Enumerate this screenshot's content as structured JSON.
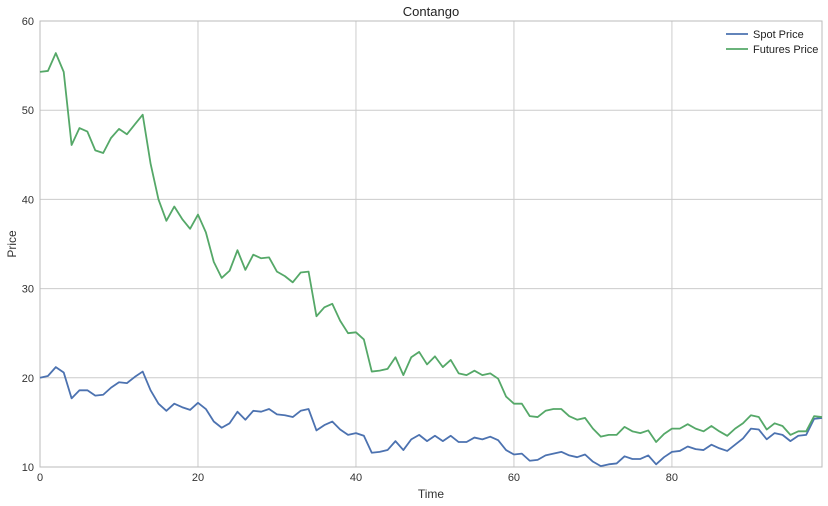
{
  "chart_data": {
    "type": "line",
    "title": "Contango",
    "xlabel": "Time",
    "ylabel": "Price",
    "xlim": [
      0,
      99
    ],
    "ylim": [
      10,
      60
    ],
    "xticks": [
      0,
      20,
      40,
      60,
      80
    ],
    "yticks": [
      10,
      20,
      30,
      40,
      50,
      60
    ],
    "grid": true,
    "legend_position": "top-right",
    "x": [
      0,
      1,
      2,
      3,
      4,
      5,
      6,
      7,
      8,
      9,
      10,
      11,
      12,
      13,
      14,
      15,
      16,
      17,
      18,
      19,
      20,
      21,
      22,
      23,
      24,
      25,
      26,
      27,
      28,
      29,
      30,
      31,
      32,
      33,
      34,
      35,
      36,
      37,
      38,
      39,
      40,
      41,
      42,
      43,
      44,
      45,
      46,
      47,
      48,
      49,
      50,
      51,
      52,
      53,
      54,
      55,
      56,
      57,
      58,
      59,
      60,
      61,
      62,
      63,
      64,
      65,
      66,
      67,
      68,
      69,
      70,
      71,
      72,
      73,
      74,
      75,
      76,
      77,
      78,
      79,
      80,
      81,
      82,
      83,
      84,
      85,
      86,
      87,
      88,
      89,
      90,
      91,
      92,
      93,
      94,
      95,
      96,
      97,
      98,
      99
    ],
    "series": [
      {
        "name": "Spot Price",
        "color": "#4c72b0",
        "values": [
          20.0,
          20.2,
          21.2,
          20.6,
          17.7,
          18.6,
          18.6,
          18.0,
          18.1,
          18.9,
          19.5,
          19.4,
          20.1,
          20.7,
          18.6,
          17.1,
          16.3,
          17.1,
          16.7,
          16.4,
          17.2,
          16.5,
          15.1,
          14.4,
          14.9,
          16.2,
          15.3,
          16.3,
          16.2,
          16.5,
          15.9,
          15.8,
          15.6,
          16.3,
          16.5,
          14.1,
          14.7,
          15.1,
          14.2,
          13.6,
          13.8,
          13.5,
          11.6,
          11.7,
          11.9,
          12.9,
          11.9,
          13.1,
          13.6,
          12.9,
          13.5,
          12.9,
          13.5,
          12.8,
          12.8,
          13.3,
          13.1,
          13.4,
          13.0,
          11.9,
          11.4,
          11.5,
          10.7,
          10.8,
          11.3,
          11.5,
          11.7,
          11.3,
          11.1,
          11.4,
          10.6,
          10.1,
          10.3,
          10.4,
          11.2,
          10.9,
          10.9,
          11.3,
          10.3,
          11.1,
          11.7,
          11.8,
          12.3,
          12.0,
          11.9,
          12.5,
          12.1,
          11.8,
          12.5,
          13.2,
          14.3,
          14.2,
          13.1,
          13.8,
          13.6,
          12.9,
          13.5,
          13.6,
          15.4,
          15.5
        ]
      },
      {
        "name": "Futures Price",
        "color": "#55a868",
        "values": [
          54.3,
          54.4,
          56.4,
          54.3,
          46.1,
          48.0,
          47.6,
          45.5,
          45.2,
          46.9,
          47.9,
          47.3,
          48.4,
          49.5,
          44.0,
          40.0,
          37.6,
          39.2,
          37.8,
          36.7,
          38.3,
          36.3,
          33.0,
          31.2,
          32.0,
          34.3,
          32.1,
          33.8,
          33.4,
          33.5,
          31.9,
          31.4,
          30.7,
          31.8,
          31.9,
          26.9,
          27.9,
          28.3,
          26.4,
          25.0,
          25.1,
          24.3,
          20.7,
          20.8,
          21.0,
          22.3,
          20.3,
          22.3,
          22.9,
          21.5,
          22.4,
          21.2,
          22.0,
          20.5,
          20.3,
          20.8,
          20.3,
          20.5,
          19.9,
          17.9,
          17.1,
          17.1,
          15.7,
          15.6,
          16.3,
          16.5,
          16.5,
          15.7,
          15.3,
          15.5,
          14.3,
          13.4,
          13.6,
          13.6,
          14.5,
          14.0,
          13.8,
          14.1,
          12.8,
          13.7,
          14.3,
          14.3,
          14.8,
          14.3,
          14.0,
          14.6,
          14.0,
          13.5,
          14.3,
          14.9,
          15.8,
          15.6,
          14.2,
          14.9,
          14.6,
          13.6,
          14.0,
          14.0,
          15.7,
          15.6
        ]
      }
    ]
  }
}
